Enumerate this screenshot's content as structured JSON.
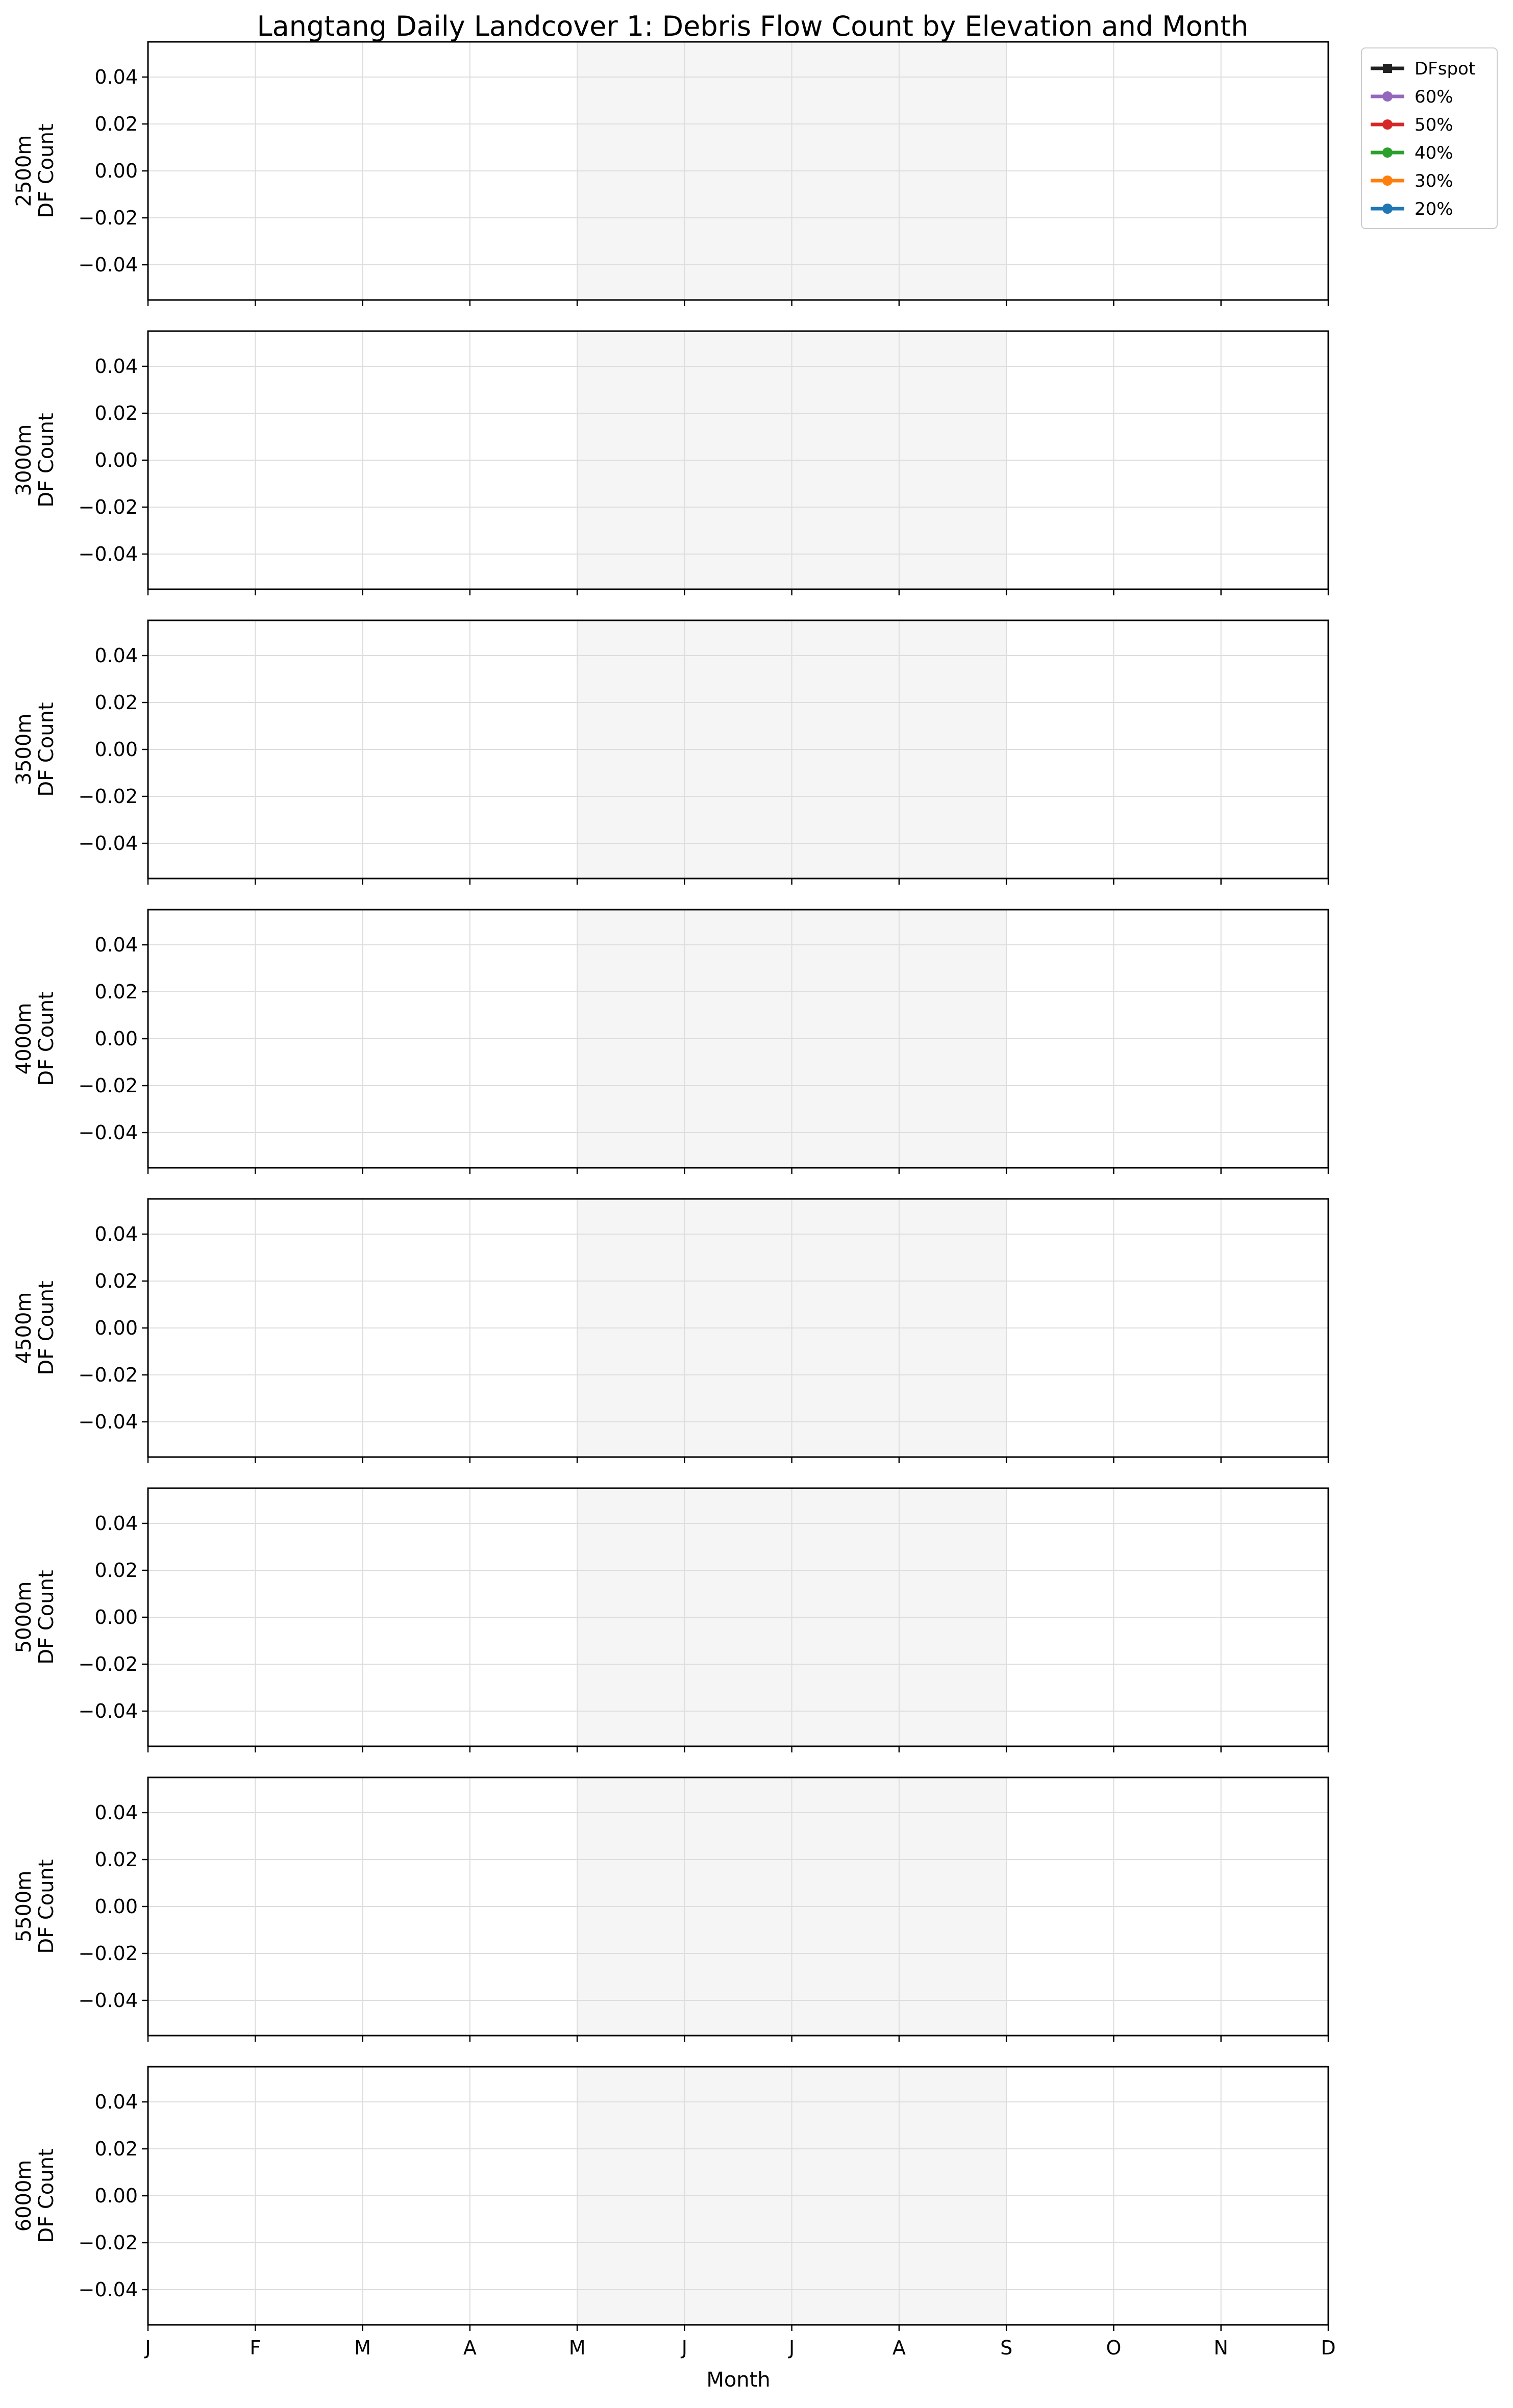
{
  "chart_data": {
    "type": "line",
    "title": "Langtang Daily Landcover 1: Debris Flow Count by Elevation and Month",
    "xlabel": "Month",
    "ylabel": "DF Count",
    "categories": [
      "J",
      "F",
      "M",
      "A",
      "M",
      "J",
      "J",
      "A",
      "S",
      "O",
      "N",
      "D"
    ],
    "x_range": [
      1,
      12
    ],
    "ylim": [
      -0.055,
      0.055
    ],
    "yticks": [
      "0.04",
      "0.02",
      "0.00",
      "−0.02",
      "−0.04"
    ],
    "ytick_values": [
      0.04,
      0.02,
      0.0,
      -0.02,
      -0.04
    ],
    "grid": true,
    "shaded_months": [
      5,
      9
    ],
    "shade_color": "#f5f5f5",
    "legend_position": "outside-top-right",
    "panels": [
      {
        "elevation": "2500m",
        "series": []
      },
      {
        "elevation": "3000m",
        "series": []
      },
      {
        "elevation": "3500m",
        "series": []
      },
      {
        "elevation": "4000m",
        "series": []
      },
      {
        "elevation": "4500m",
        "series": []
      },
      {
        "elevation": "5000m",
        "series": []
      },
      {
        "elevation": "5500m",
        "series": []
      },
      {
        "elevation": "6000m",
        "series": []
      }
    ],
    "legend": [
      {
        "name": "DFspot",
        "color": "#222222",
        "marker": "square"
      },
      {
        "name": "60%",
        "color": "#9467bd",
        "marker": "circle"
      },
      {
        "name": "50%",
        "color": "#d62728",
        "marker": "circle"
      },
      {
        "name": "40%",
        "color": "#2ca02c",
        "marker": "circle"
      },
      {
        "name": "30%",
        "color": "#ff7f0e",
        "marker": "circle"
      },
      {
        "name": "20%",
        "color": "#1f77b4",
        "marker": "circle"
      }
    ]
  }
}
